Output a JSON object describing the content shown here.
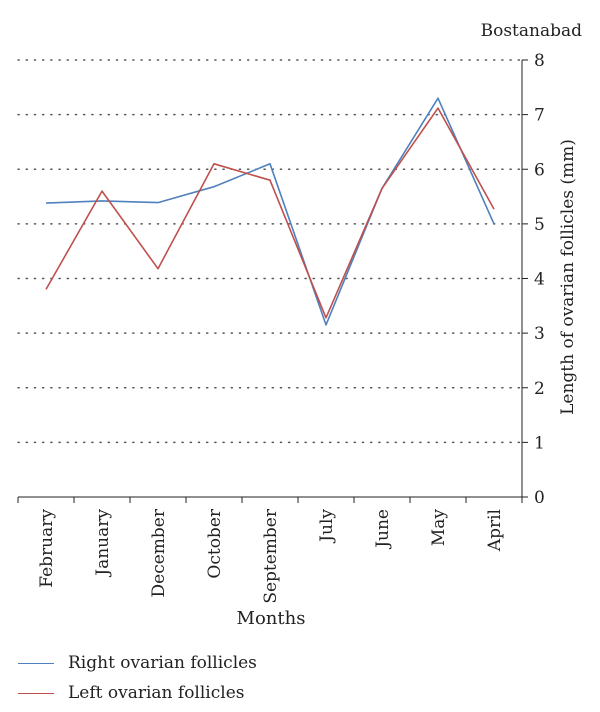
{
  "chart_data": {
    "type": "line",
    "title": "Bostanabad",
    "xlabel": "Months",
    "ylabel": "Length of ovarian follicles (mm)",
    "categories": [
      "February",
      "January",
      "December",
      "October",
      "September",
      "July",
      "June",
      "May",
      "April"
    ],
    "ylim": [
      0,
      8
    ],
    "yticks": [
      0,
      1,
      2,
      3,
      4,
      5,
      6,
      7,
      8
    ],
    "y_axis_side": "right",
    "grid": "horizontal dotted",
    "legend_position": "bottom-left",
    "series": [
      {
        "name": "Right ovarian follicles",
        "color": "#4f81bd",
        "values": [
          5.38,
          5.42,
          5.39,
          5.68,
          6.1,
          3.15,
          5.65,
          7.3,
          5.0
        ]
      },
      {
        "name": "Left ovarian follicles",
        "color": "#c0504d",
        "values": [
          3.8,
          5.6,
          4.18,
          6.1,
          5.8,
          3.28,
          5.65,
          7.12,
          5.27
        ]
      }
    ]
  }
}
